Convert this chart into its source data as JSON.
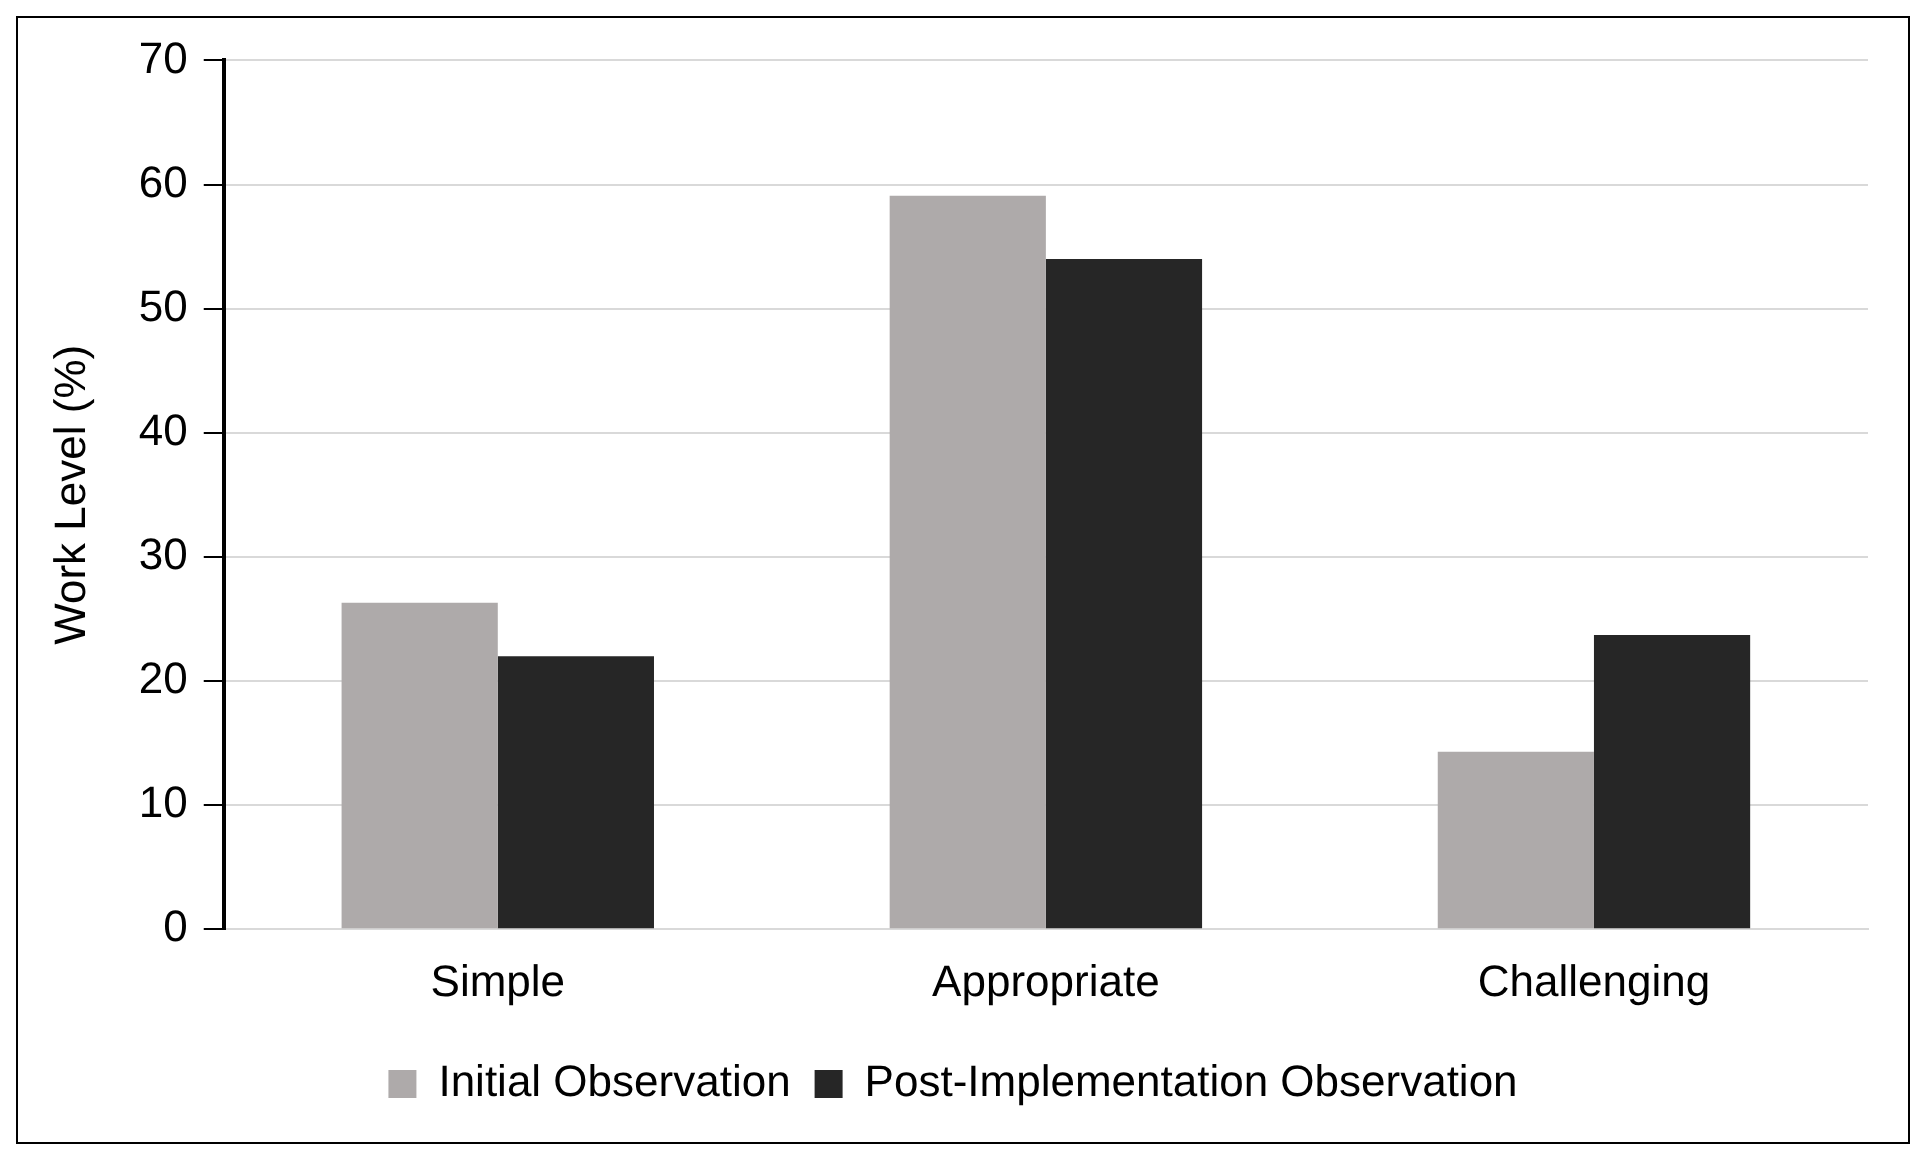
{
  "chart_data": {
    "type": "bar",
    "ylabel": "Work Level (%)",
    "categories": [
      "Simple",
      "Appropriate",
      "Challenging"
    ],
    "series": [
      {
        "name": "Initial Observation",
        "color": "#aeaaaa",
        "values": [
          26.3,
          59.1,
          14.3
        ]
      },
      {
        "name": "Post-Implementation Observation",
        "color": "#262626",
        "values": [
          22.0,
          54.0,
          23.7
        ]
      }
    ],
    "ylim": [
      0,
      70
    ],
    "yticks": [
      0,
      10,
      20,
      30,
      40,
      50,
      60,
      70
    ],
    "grid": "y",
    "legend": "bottom"
  }
}
